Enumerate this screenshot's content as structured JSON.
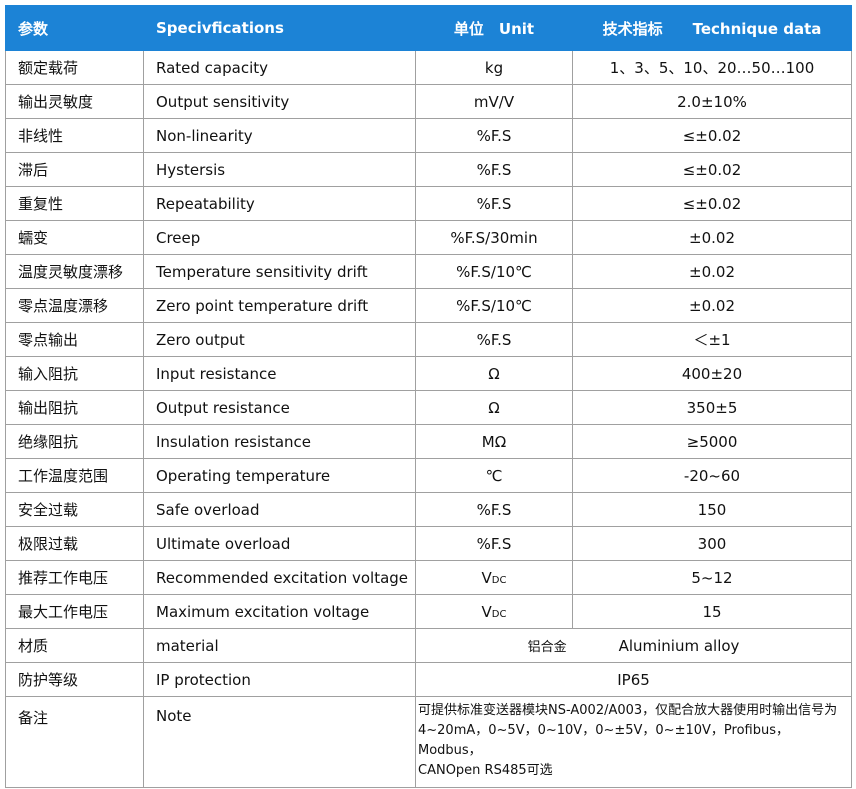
{
  "header": [
    "参数",
    "Specivfications",
    "单位　Unit",
    "技术指标　　Technique data"
  ],
  "rows": [
    [
      "额定载荷",
      "Rated capacity",
      "kg",
      "1、3、5、10、20…50…100"
    ],
    [
      "输出灵敏度",
      "Output sensitivity",
      "mV/V",
      "2.0±10%"
    ],
    [
      "非线性",
      "Non-linearity",
      "%F.S",
      "≤±0.02"
    ],
    [
      "滞后",
      "Hystersis",
      "%F.S",
      "≤±0.02"
    ],
    [
      "重复性",
      "Repeatability",
      "%F.S",
      "≤±0.02"
    ],
    [
      "蠕变",
      "Creep",
      "%F.S/30min",
      "±0.02"
    ],
    [
      "温度灵敏度漂移",
      "Temperature sensitivity drift",
      "%F.S/10℃",
      "±0.02"
    ],
    [
      "零点温度漂移",
      "Zero point temperature drift",
      "%F.S/10℃",
      "±0.02"
    ],
    [
      "零点输出",
      "Zero output",
      "%F.S",
      "＜±1"
    ],
    [
      "输入阻抗",
      "Input resistance",
      "Ω",
      "400±20"
    ],
    [
      "输出阻抗",
      "Output resistance",
      "Ω",
      "350±5"
    ],
    [
      "绝缘阻抗",
      "Insulation resistance",
      "MΩ",
      "≥5000"
    ],
    [
      "工作温度范围",
      "Operating temperature",
      "℃",
      "-20~60"
    ],
    [
      "安全过载",
      "Safe overload",
      "%F.S",
      "150"
    ],
    [
      "极限过载",
      "Ultimate overload",
      "%F.S",
      "300"
    ],
    [
      "推荐工作电压",
      "Recommended excitation voltage",
      {
        "main": "V",
        "sub": "DC"
      },
      "5~12"
    ],
    [
      "最大工作电压",
      "Maximum excitation voltage",
      {
        "main": "V",
        "sub": "DC"
      },
      "15"
    ],
    [
      "材质",
      "material",
      [
        "铝合金",
        "Aluminium alloy"
      ]
    ],
    [
      "防护等级",
      "IP protection",
      "IP65"
    ],
    [
      "备注",
      "Note",
      [
        "可提供标准变送器模块NS-A002/A003，仅配合放大器使用时输出信号为",
        "4~20mA，0~5V，0~10V，0~±5V，0~±10V，Profibus，Modbus，",
        "CANOpen  RS485可选"
      ]
    ]
  ]
}
